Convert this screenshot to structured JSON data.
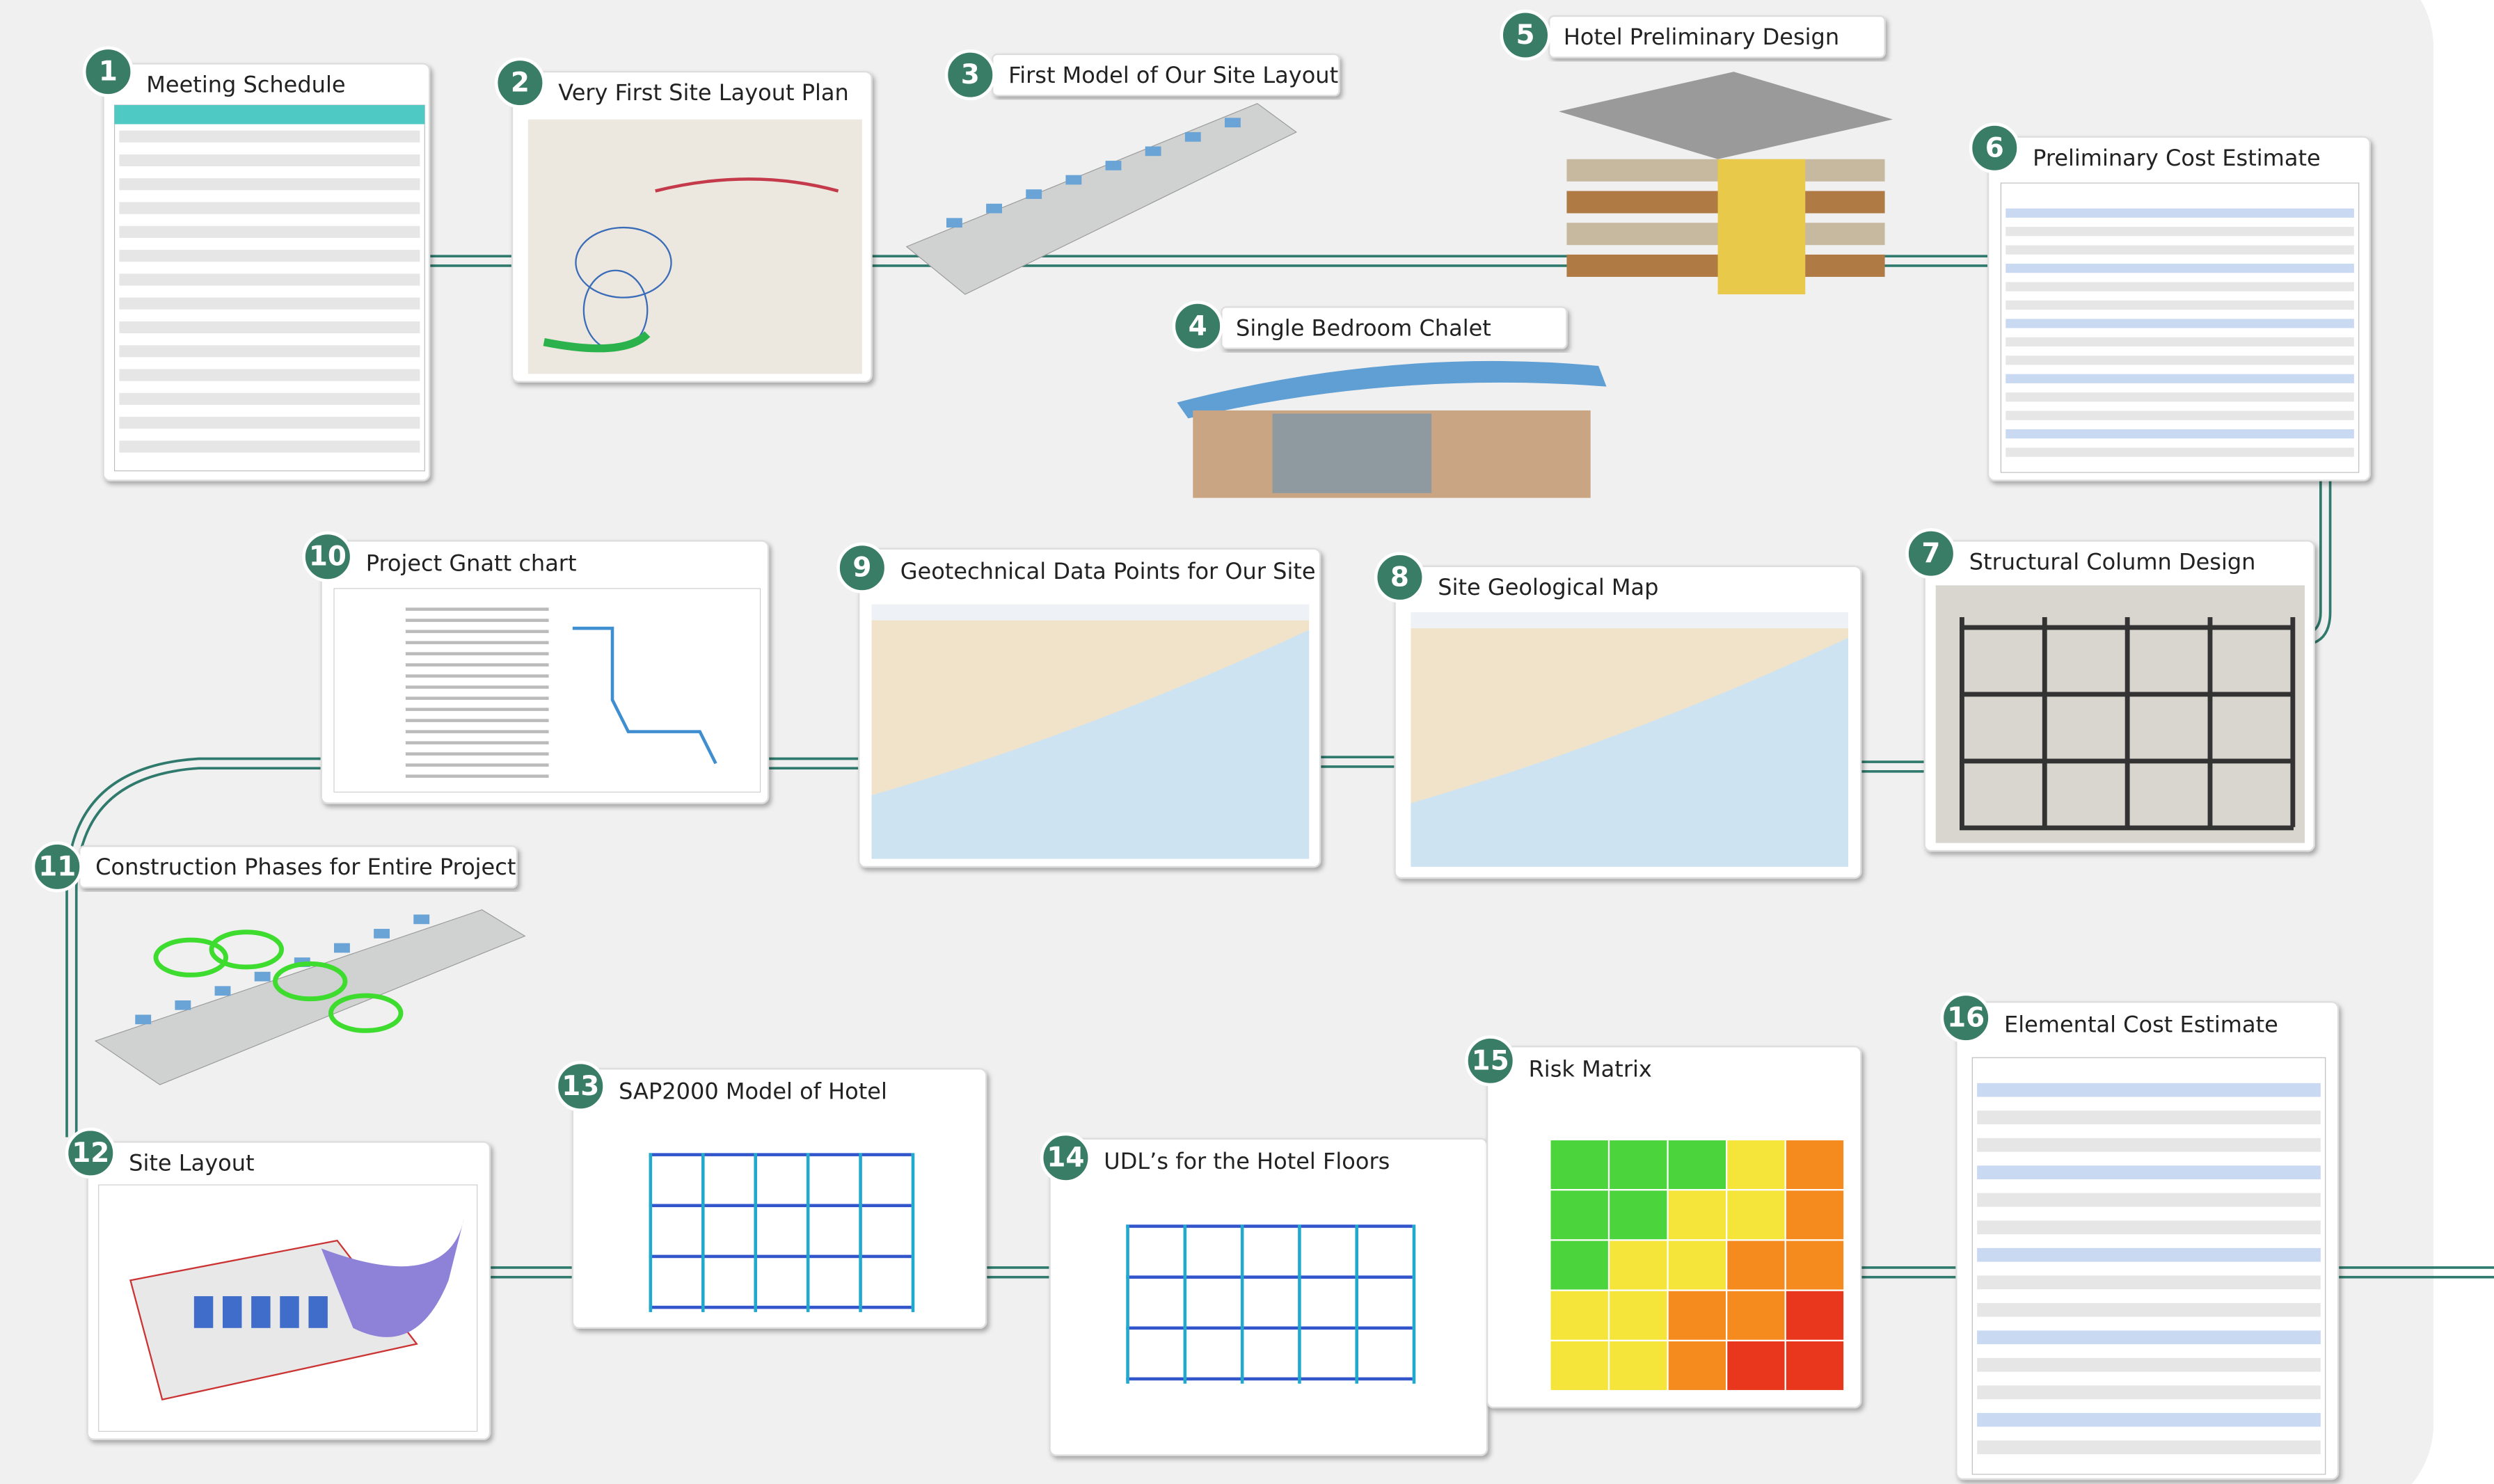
{
  "steps": [
    {
      "number": "1",
      "title": "Meeting Schedule"
    },
    {
      "number": "2",
      "title": "Very First Site Layout Plan"
    },
    {
      "number": "3",
      "title": "First Model of Our Site Layout"
    },
    {
      "number": "4",
      "title": "Single Bedroom Chalet"
    },
    {
      "number": "5",
      "title": "Hotel Preliminary Design"
    },
    {
      "number": "6",
      "title": "Preliminary Cost Estimate"
    },
    {
      "number": "7",
      "title": "Structural Column Design"
    },
    {
      "number": "8",
      "title": "Site Geological Map"
    },
    {
      "number": "9",
      "title": "Geotechnical Data Points for Our Site"
    },
    {
      "number": "10",
      "title": "Project Gnatt chart"
    },
    {
      "number": "11",
      "title": "Construction Phases for Entire Project"
    },
    {
      "number": "12",
      "title": "Site Layout"
    },
    {
      "number": "13",
      "title": "SAP2000 Model of Hotel"
    },
    {
      "number": "14",
      "title": "UDL’s for the Hotel Floors"
    },
    {
      "number": "15",
      "title": "Risk Matrix"
    },
    {
      "number": "16",
      "title": "Elemental Cost Estimate"
    }
  ]
}
